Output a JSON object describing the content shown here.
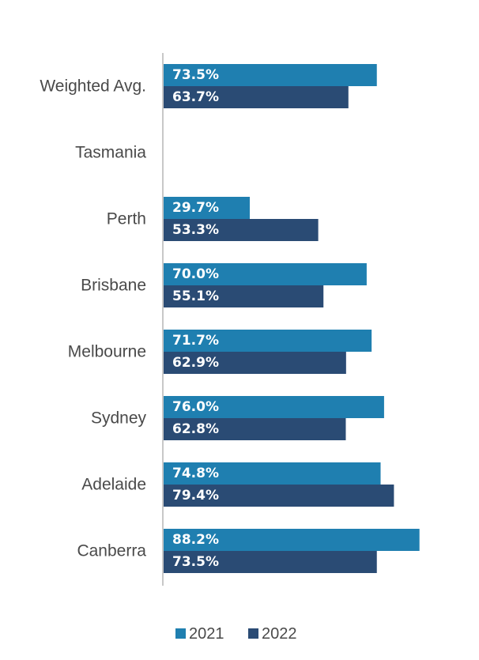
{
  "chart_data": {
    "type": "bar",
    "orientation": "horizontal",
    "categories": [
      "Weighted Avg.",
      "Tasmania",
      "Perth",
      "Brisbane",
      "Melbourne",
      "Sydney",
      "Adelaide",
      "Canberra"
    ],
    "series": [
      {
        "name": "2021",
        "color": "#1f7fb0",
        "values": [
          73.5,
          null,
          29.7,
          70.0,
          71.7,
          76.0,
          74.8,
          88.2
        ],
        "labels": [
          "73.5%",
          "",
          "29.7%",
          "70.0%",
          "71.7%",
          "76.0%",
          "74.8%",
          "88.2%"
        ]
      },
      {
        "name": "2022",
        "color": "#2a4b74",
        "values": [
          63.7,
          null,
          53.3,
          55.1,
          62.9,
          62.8,
          79.4,
          73.5
        ],
        "labels": [
          "63.7%",
          "",
          "53.3%",
          "55.1%",
          "62.9%",
          "62.8%",
          "79.4%",
          "73.5%"
        ]
      }
    ],
    "xlim": [
      0,
      100
    ],
    "grid": false,
    "legend_position": "bottom"
  }
}
